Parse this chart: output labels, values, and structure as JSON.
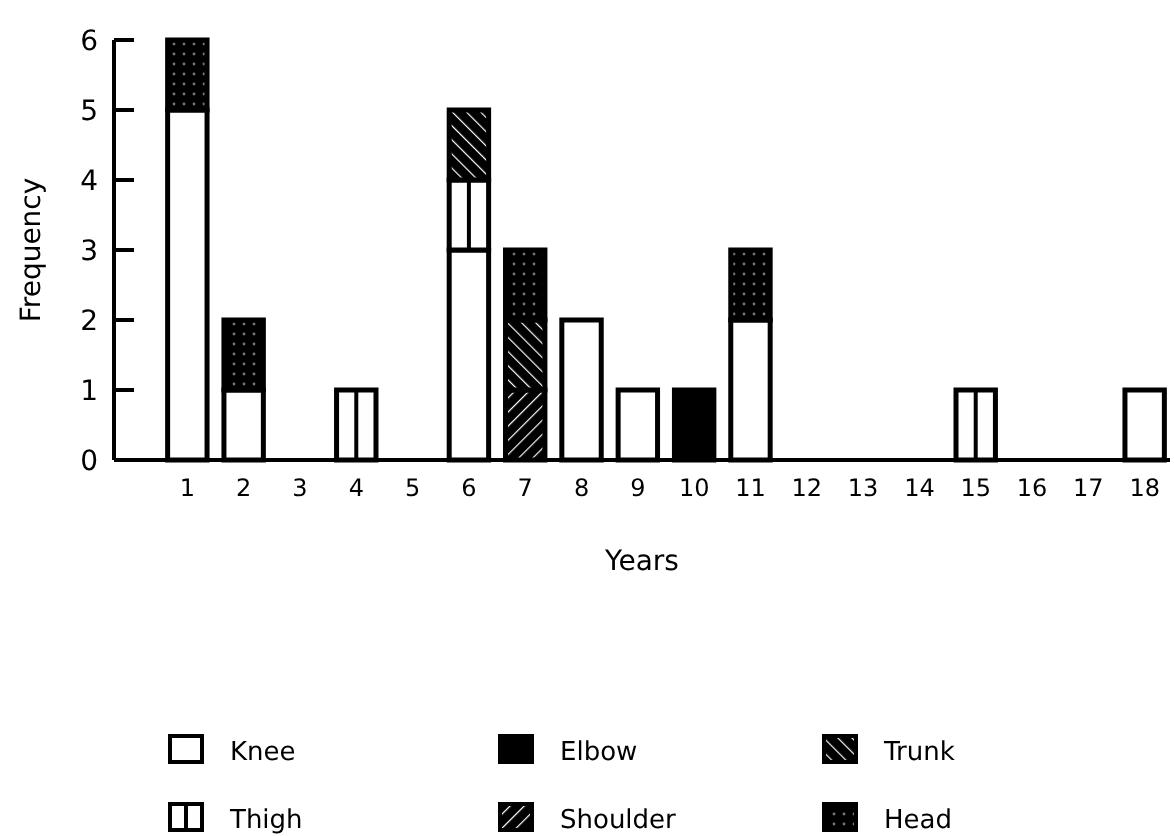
{
  "chart_data": {
    "type": "bar",
    "stacked": true,
    "xlabel": "Years",
    "ylabel": "Frequency",
    "categories": [
      "1",
      "2",
      "3",
      "4",
      "5",
      "6",
      "7",
      "8",
      "9",
      "10",
      "11",
      "12",
      "13",
      "14",
      "15",
      "16",
      "17",
      "18"
    ],
    "ylim": [
      0,
      6
    ],
    "yticks": [
      0,
      1,
      2,
      3,
      4,
      5,
      6
    ],
    "grid": false,
    "legend": "bottom",
    "series": [
      {
        "name": "Knee",
        "color": "#ffffff",
        "values": [
          5,
          1,
          0,
          0,
          0,
          3,
          0,
          2,
          1,
          0,
          2,
          0,
          0,
          0,
          0,
          0,
          0,
          1
        ]
      },
      {
        "name": "Thigh",
        "color": "#fefefe",
        "values": [
          0,
          0,
          0,
          1,
          0,
          1,
          0,
          0,
          0,
          0,
          0,
          0,
          0,
          0,
          1,
          0,
          0,
          0
        ]
      },
      {
        "name": "Elbow",
        "color": "#000000",
        "values": [
          0,
          0,
          0,
          0,
          0,
          0,
          0,
          0,
          0,
          1,
          0,
          0,
          0,
          0,
          0,
          0,
          0,
          0
        ]
      },
      {
        "name": "Shoulder",
        "color": "#000000",
        "values": [
          0,
          0,
          0,
          0,
          0,
          0,
          1,
          0,
          0,
          0,
          0,
          0,
          0,
          0,
          0,
          0,
          0,
          0
        ]
      },
      {
        "name": "Trunk",
        "color": "#000000",
        "values": [
          0,
          0,
          0,
          0,
          0,
          1,
          1,
          0,
          0,
          0,
          0,
          0,
          0,
          0,
          0,
          0,
          0,
          0
        ]
      },
      {
        "name": "Head",
        "color": "#000000",
        "values": [
          1,
          1,
          0,
          0,
          0,
          0,
          1,
          0,
          0,
          0,
          1,
          0,
          0,
          0,
          0,
          0,
          0,
          0
        ]
      }
    ]
  }
}
